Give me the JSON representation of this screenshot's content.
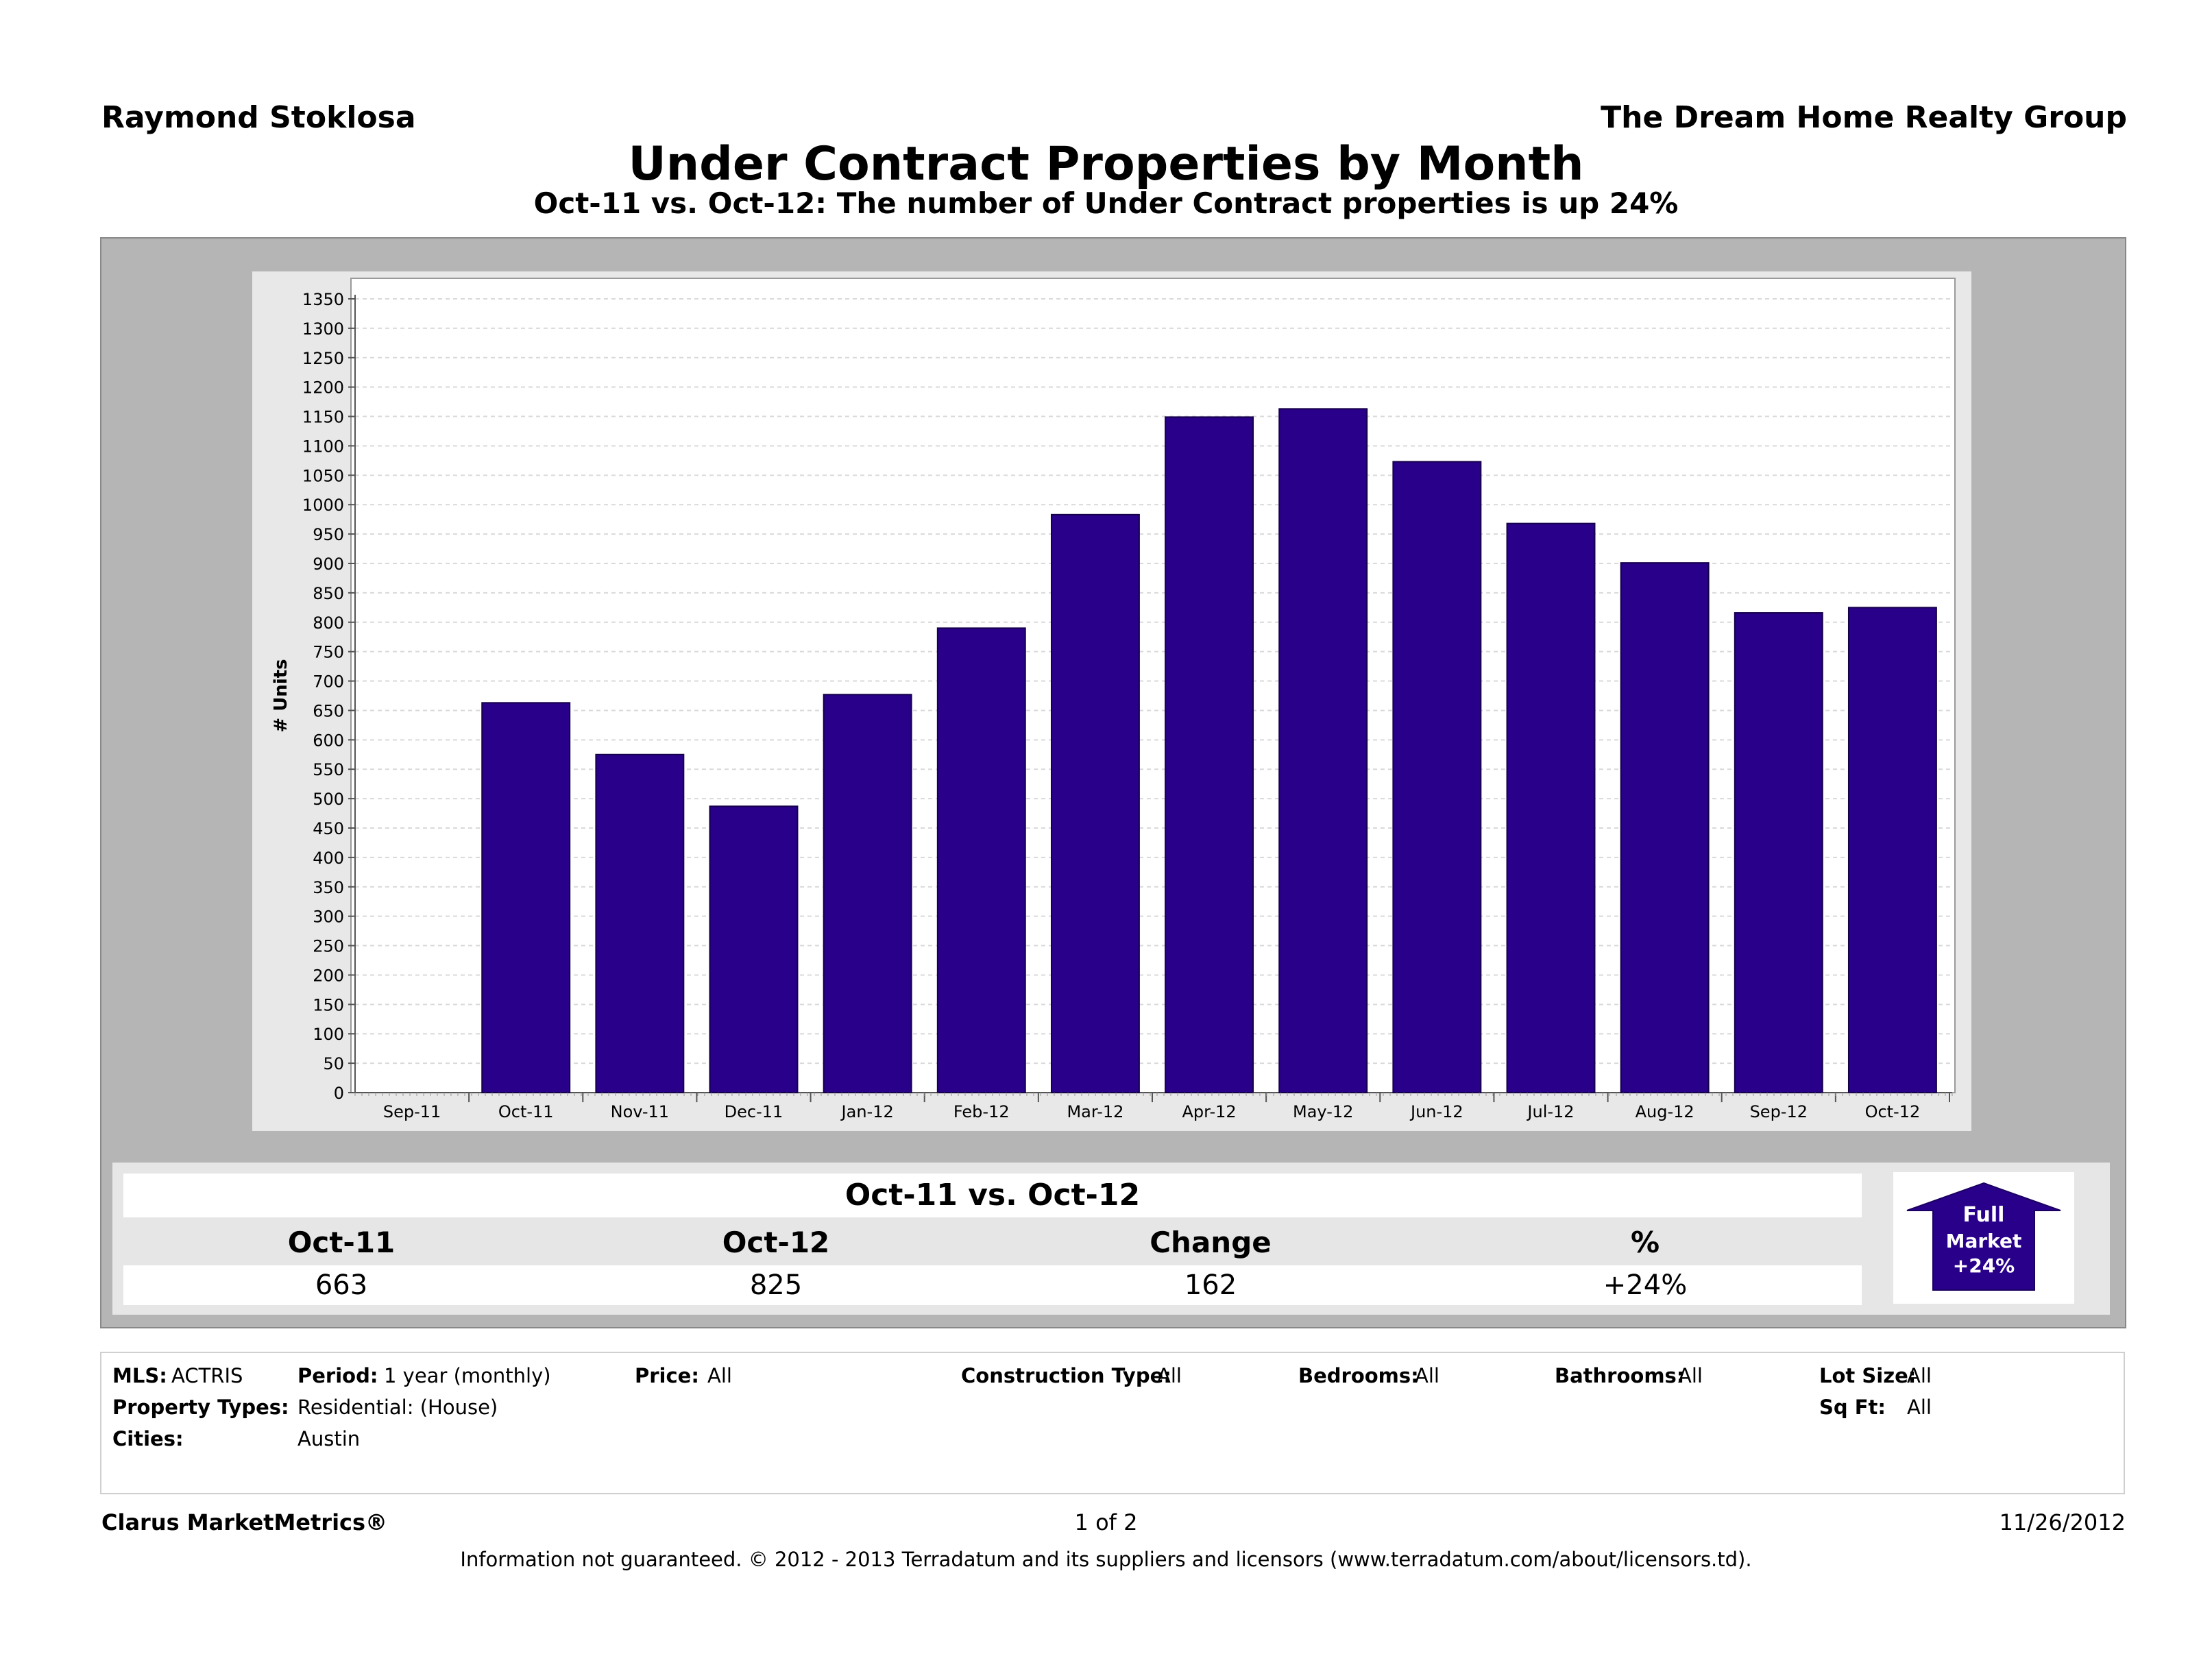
{
  "header": {
    "agent": "Raymond Stoklosa",
    "company": "The Dream Home Realty Group",
    "title": "Under Contract Properties by Month",
    "subtitle": "Oct-11 vs. Oct-12: The number of Under Contract properties is up 24%"
  },
  "chart_data": {
    "type": "bar",
    "categories": [
      "Sep-11",
      "Oct-11",
      "Nov-11",
      "Dec-11",
      "Jan-12",
      "Feb-12",
      "Mar-12",
      "Apr-12",
      "May-12",
      "Jun-12",
      "Jul-12",
      "Aug-12",
      "Sep-12",
      "Oct-12"
    ],
    "values": [
      null,
      663,
      575,
      487,
      677,
      790,
      983,
      1149,
      1163,
      1073,
      968,
      901,
      816,
      825
    ],
    "ylabel": "# Units",
    "ylim": [
      0,
      1350
    ],
    "ytick_step": 50,
    "grid": true,
    "bar_color": "#29008a"
  },
  "summary": {
    "heading": "Oct-11 vs. Oct-12",
    "columns": [
      "Oct-11",
      "Oct-12",
      "Change",
      "%"
    ],
    "values": [
      "663",
      "825",
      "162",
      "+24%"
    ],
    "badge": {
      "line1": "Full",
      "line2": "Market",
      "line3": "+24%",
      "icon": "up-arrow-icon",
      "color": "#29008a"
    }
  },
  "filters": {
    "mls_label": "MLS:",
    "mls_value": "ACTRIS",
    "period_label": "Period:",
    "period_value": "1 year (monthly)",
    "price_label": "Price:",
    "price_value": "All",
    "construction_label": "Construction Type:",
    "construction_value": "All",
    "bedrooms_label": "Bedrooms:",
    "bedrooms_value": "All",
    "bathrooms_label": "Bathrooms:",
    "bathrooms_value": "All",
    "lotsize_label": "Lot Size:",
    "lotsize_value": "All",
    "property_types_label": "Property Types:",
    "property_types_value": "Residential: (House)",
    "sqft_label": "Sq Ft:",
    "sqft_value": "All",
    "cities_label": "Cities:",
    "cities_value": "Austin"
  },
  "footer": {
    "brand": "Clarus MarketMetrics®",
    "page": "1 of 2",
    "date": "11/26/2012",
    "legal": "Information not guaranteed.  © 2012 - 2013 Terradatum and its suppliers and licensors (www.terradatum.com/about/licensors.td)."
  }
}
